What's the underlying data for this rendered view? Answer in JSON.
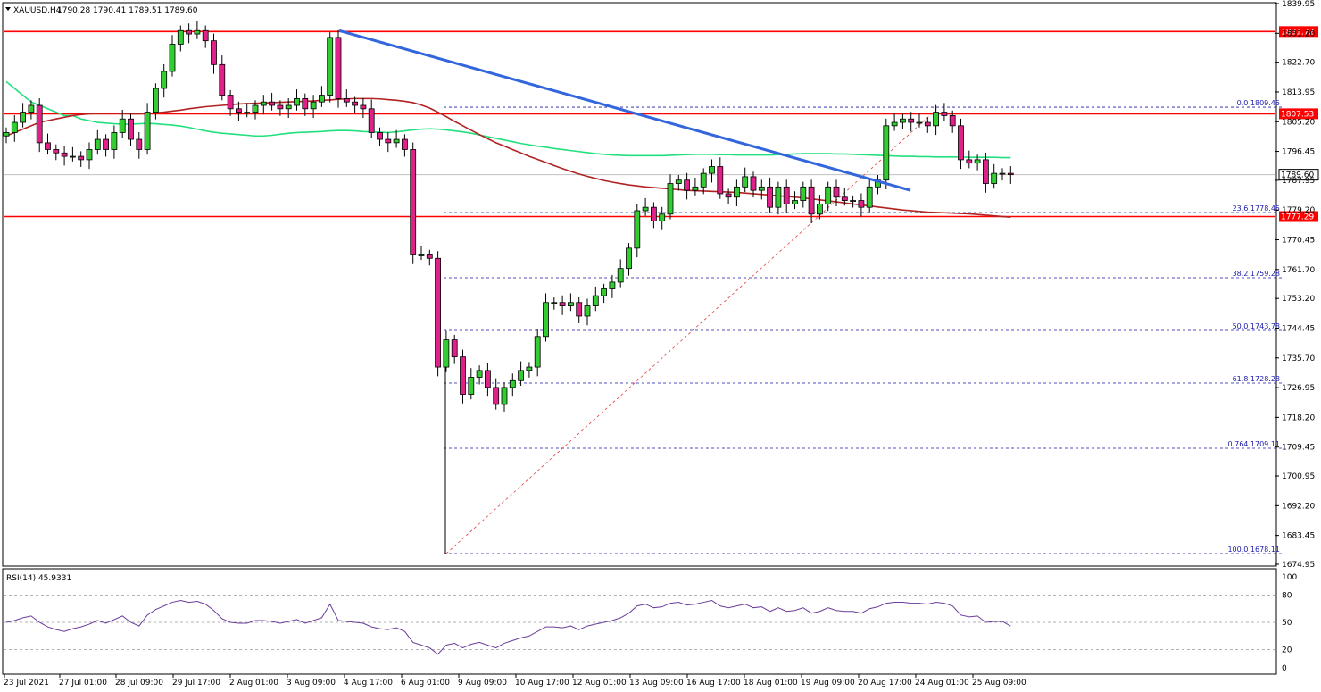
{
  "header": {
    "symbol": "XAUUSD,H4",
    "ohlc": "1790.28 1790.41 1789.51 1789.60",
    "rsi_label": "RSI(14) 45.9331"
  },
  "colors": {
    "bull": "#33cc33",
    "bear": "#e0218a",
    "ma_fast": "#21e07d",
    "ma_slow": "#b22222",
    "trend": "#3366dd",
    "level": "#ff0000",
    "fib": "#1a1aa8",
    "rsi": "#6a3d9a"
  },
  "chart_data": {
    "type": "candlestick",
    "title": "",
    "ylim": [
      1674.95,
      1839.95
    ],
    "y_ticks": [
      "1839.95",
      "1831.20",
      "1822.70",
      "1813.95",
      "1805.20",
      "1796.45",
      "1787.95",
      "1779.20",
      "1770.45",
      "1761.70",
      "1753.20",
      "1744.45",
      "1735.70",
      "1726.95",
      "1718.20",
      "1709.45",
      "1700.95",
      "1692.20",
      "1683.45",
      "1674.95"
    ],
    "x_ticks": [
      "23 Jul 2021",
      "27 Jul 01:00",
      "28 Jul 09:00",
      "29 Jul 17:00",
      "2 Aug 01:00",
      "3 Aug 09:00",
      "4 Aug 17:00",
      "6 Aug 01:00",
      "9 Aug 09:00",
      "10 Aug 17:00",
      "12 Aug 01:00",
      "13 Aug 09:00",
      "16 Aug 17:00",
      "18 Aug 01:00",
      "19 Aug 09:00",
      "20 Aug 17:00",
      "24 Aug 01:00",
      "25 Aug 09:00"
    ],
    "current_price": "1789.60",
    "levels": [
      {
        "value": 1831.72,
        "label": "1831.72"
      },
      {
        "value": 1807.53,
        "label": "1807.53"
      },
      {
        "value": 1777.29,
        "label": "1777.29"
      }
    ],
    "fibonacci": [
      {
        "value": 1809.45,
        "label": "0.0 1809.45"
      },
      {
        "value": 1778.45,
        "label": "23.6 1778.45"
      },
      {
        "value": 1759.28,
        "label": "38.2 1759.28"
      },
      {
        "value": 1743.78,
        "label": "50.0 1743.78"
      },
      {
        "value": 1728.28,
        "label": "61.8 1728.28"
      },
      {
        "value": 1709.11,
        "label": "0.764 1709.11"
      },
      {
        "value": 1678.11,
        "label": "100.0 1678.11"
      }
    ],
    "closes": [
      1802,
      1805,
      1808,
      1810,
      1799,
      1797,
      1796,
      1795,
      1795,
      1794,
      1797,
      1800,
      1797,
      1802,
      1806,
      1800,
      1797,
      1808,
      1815,
      1820,
      1828,
      1832,
      1831,
      1832,
      1829,
      1822,
      1813,
      1809,
      1808,
      1808,
      1810,
      1811,
      1810,
      1809,
      1810,
      1812,
      1809,
      1811,
      1813,
      1830,
      1812,
      1811,
      1810,
      1809,
      1802,
      1800,
      1799,
      1800,
      1797,
      1766,
      1766,
      1765,
      1733,
      1741,
      1736,
      1725,
      1730,
      1732,
      1727,
      1722,
      1727,
      1729,
      1732,
      1733,
      1742,
      1752,
      1752,
      1751,
      1752,
      1748,
      1751,
      1754,
      1756,
      1758,
      1762,
      1768,
      1779,
      1780,
      1776,
      1778,
      1787,
      1788,
      1785,
      1786,
      1790,
      1792,
      1784,
      1783,
      1786,
      1789,
      1785,
      1786,
      1780,
      1786,
      1781,
      1782,
      1786,
      1778,
      1781,
      1786,
      1783,
      1782,
      1782,
      1780,
      1786,
      1788,
      1804,
      1805,
      1806,
      1805,
      1805,
      1804,
      1808,
      1807,
      1804,
      1794,
      1793,
      1794,
      1787,
      1790,
      1790,
      1789.6
    ],
    "sma_fast": [
      1817,
      1815,
      1813,
      1811,
      1810,
      1809,
      1808,
      1807,
      1807,
      1806,
      1805.5,
      1805,
      1804.8,
      1804.6,
      1804.5,
      1804.5,
      1804.6,
      1804.7,
      1804.6,
      1804.4,
      1804.2,
      1803.9,
      1803.5,
      1803.0,
      1802.5,
      1802.1,
      1801.8,
      1801.6,
      1801.4,
      1801.2,
      1801.0,
      1801.0,
      1801.2,
      1801.5,
      1801.8,
      1802.0,
      1802.1,
      1802.2,
      1802.3,
      1802.5,
      1802.6,
      1802.6,
      1802.5,
      1802.3,
      1802.2,
      1802.1,
      1802.0,
      1802.2,
      1802.5,
      1802.8,
      1803.0,
      1803.1,
      1803.0,
      1802.8,
      1802.5,
      1802.2,
      1801.8,
      1801.3,
      1800.8,
      1800.3,
      1799.8,
      1799.3,
      1798.8,
      1798.4,
      1798.0,
      1797.7,
      1797.3,
      1797.0,
      1796.7,
      1796.4,
      1796.1,
      1795.8,
      1795.6,
      1795.4,
      1795.3,
      1795.2,
      1795.2,
      1795.2,
      1795.2,
      1795.2,
      1795.3,
      1795.4,
      1795.5,
      1795.6,
      1795.6,
      1795.6,
      1795.5,
      1795.5,
      1795.4,
      1795.4,
      1795.4,
      1795.4,
      1795.4,
      1795.5,
      1795.6,
      1795.7,
      1795.8,
      1795.8,
      1795.8,
      1795.8,
      1795.7,
      1795.7,
      1795.6,
      1795.5,
      1795.4,
      1795.3,
      1795.2,
      1795.1,
      1795.0,
      1795.0,
      1794.9,
      1794.9,
      1794.8,
      1794.8,
      1794.8,
      1794.8,
      1794.7,
      1794.7,
      1794.7,
      1794.7,
      1794.6,
      1794.6
    ],
    "sma_slow": [
      1801,
      1802,
      1803,
      1804,
      1805,
      1805.5,
      1806,
      1806.5,
      1807,
      1807.3,
      1807.5,
      1807.6,
      1807.7,
      1807.7,
      1807.6,
      1807.5,
      1807.5,
      1807.6,
      1807.8,
      1808.0,
      1808.3,
      1808.6,
      1809.0,
      1809.3,
      1809.6,
      1809.8,
      1810.0,
      1810.2,
      1810.4,
      1810.5,
      1810.6,
      1810.7,
      1810.8,
      1810.9,
      1811.0,
      1811.1,
      1811.2,
      1811.3,
      1811.5,
      1811.6,
      1811.8,
      1811.9,
      1812.0,
      1812.0,
      1812.0,
      1811.9,
      1811.7,
      1811.5,
      1811.2,
      1810.8,
      1810.1,
      1809.2,
      1808.0,
      1806.7,
      1805.3,
      1804.0,
      1802.7,
      1801.4,
      1800.2,
      1799.0,
      1798.0,
      1797.0,
      1796.0,
      1795.0,
      1794.1,
      1793.2,
      1792.3,
      1791.4,
      1790.6,
      1789.8,
      1789.1,
      1788.5,
      1787.9,
      1787.4,
      1787.0,
      1786.6,
      1786.3,
      1786.0,
      1785.8,
      1785.6,
      1785.4,
      1785.2,
      1785.0,
      1784.9,
      1784.8,
      1784.7,
      1784.6,
      1784.5,
      1784.4,
      1784.2,
      1784.0,
      1783.8,
      1783.6,
      1783.4,
      1783.2,
      1783.0,
      1782.8,
      1782.5,
      1782.2,
      1781.9,
      1781.6,
      1781.3,
      1781.0,
      1780.7,
      1780.4,
      1780.1,
      1779.8,
      1779.5,
      1779.2,
      1779.0,
      1778.8,
      1778.6,
      1778.5,
      1778.4,
      1778.3,
      1778.2,
      1778.1,
      1777.9,
      1777.7,
      1777.5,
      1777.3,
      1777.1
    ],
    "rsi": {
      "label": "RSI(14) 45.9331",
      "ylim": [
        0,
        100
      ],
      "ticks": [
        "100",
        "80",
        "50",
        "20",
        "0"
      ],
      "levels": [
        80,
        50,
        20
      ],
      "values": [
        50,
        52,
        55,
        57,
        50,
        45,
        42,
        40,
        43,
        45,
        48,
        52,
        49,
        53,
        57,
        50,
        46,
        58,
        64,
        68,
        72,
        74,
        72,
        73,
        70,
        63,
        54,
        50,
        49,
        49,
        52,
        52,
        51,
        49,
        51,
        53,
        49,
        52,
        55,
        70,
        52,
        51,
        50,
        49,
        45,
        43,
        42,
        44,
        40,
        28,
        25,
        22,
        15,
        25,
        27,
        22,
        26,
        28,
        25,
        22,
        27,
        30,
        33,
        35,
        40,
        45,
        45,
        44,
        46,
        42,
        46,
        48,
        50,
        52,
        55,
        60,
        68,
        70,
        66,
        67,
        71,
        72,
        69,
        70,
        72,
        74,
        68,
        66,
        68,
        70,
        66,
        67,
        62,
        66,
        62,
        63,
        66,
        60,
        62,
        66,
        63,
        62,
        62,
        60,
        65,
        67,
        71,
        72,
        72,
        71,
        71,
        70,
        72,
        71,
        68,
        58,
        56,
        57,
        50,
        51,
        51,
        45.9
      ]
    }
  }
}
